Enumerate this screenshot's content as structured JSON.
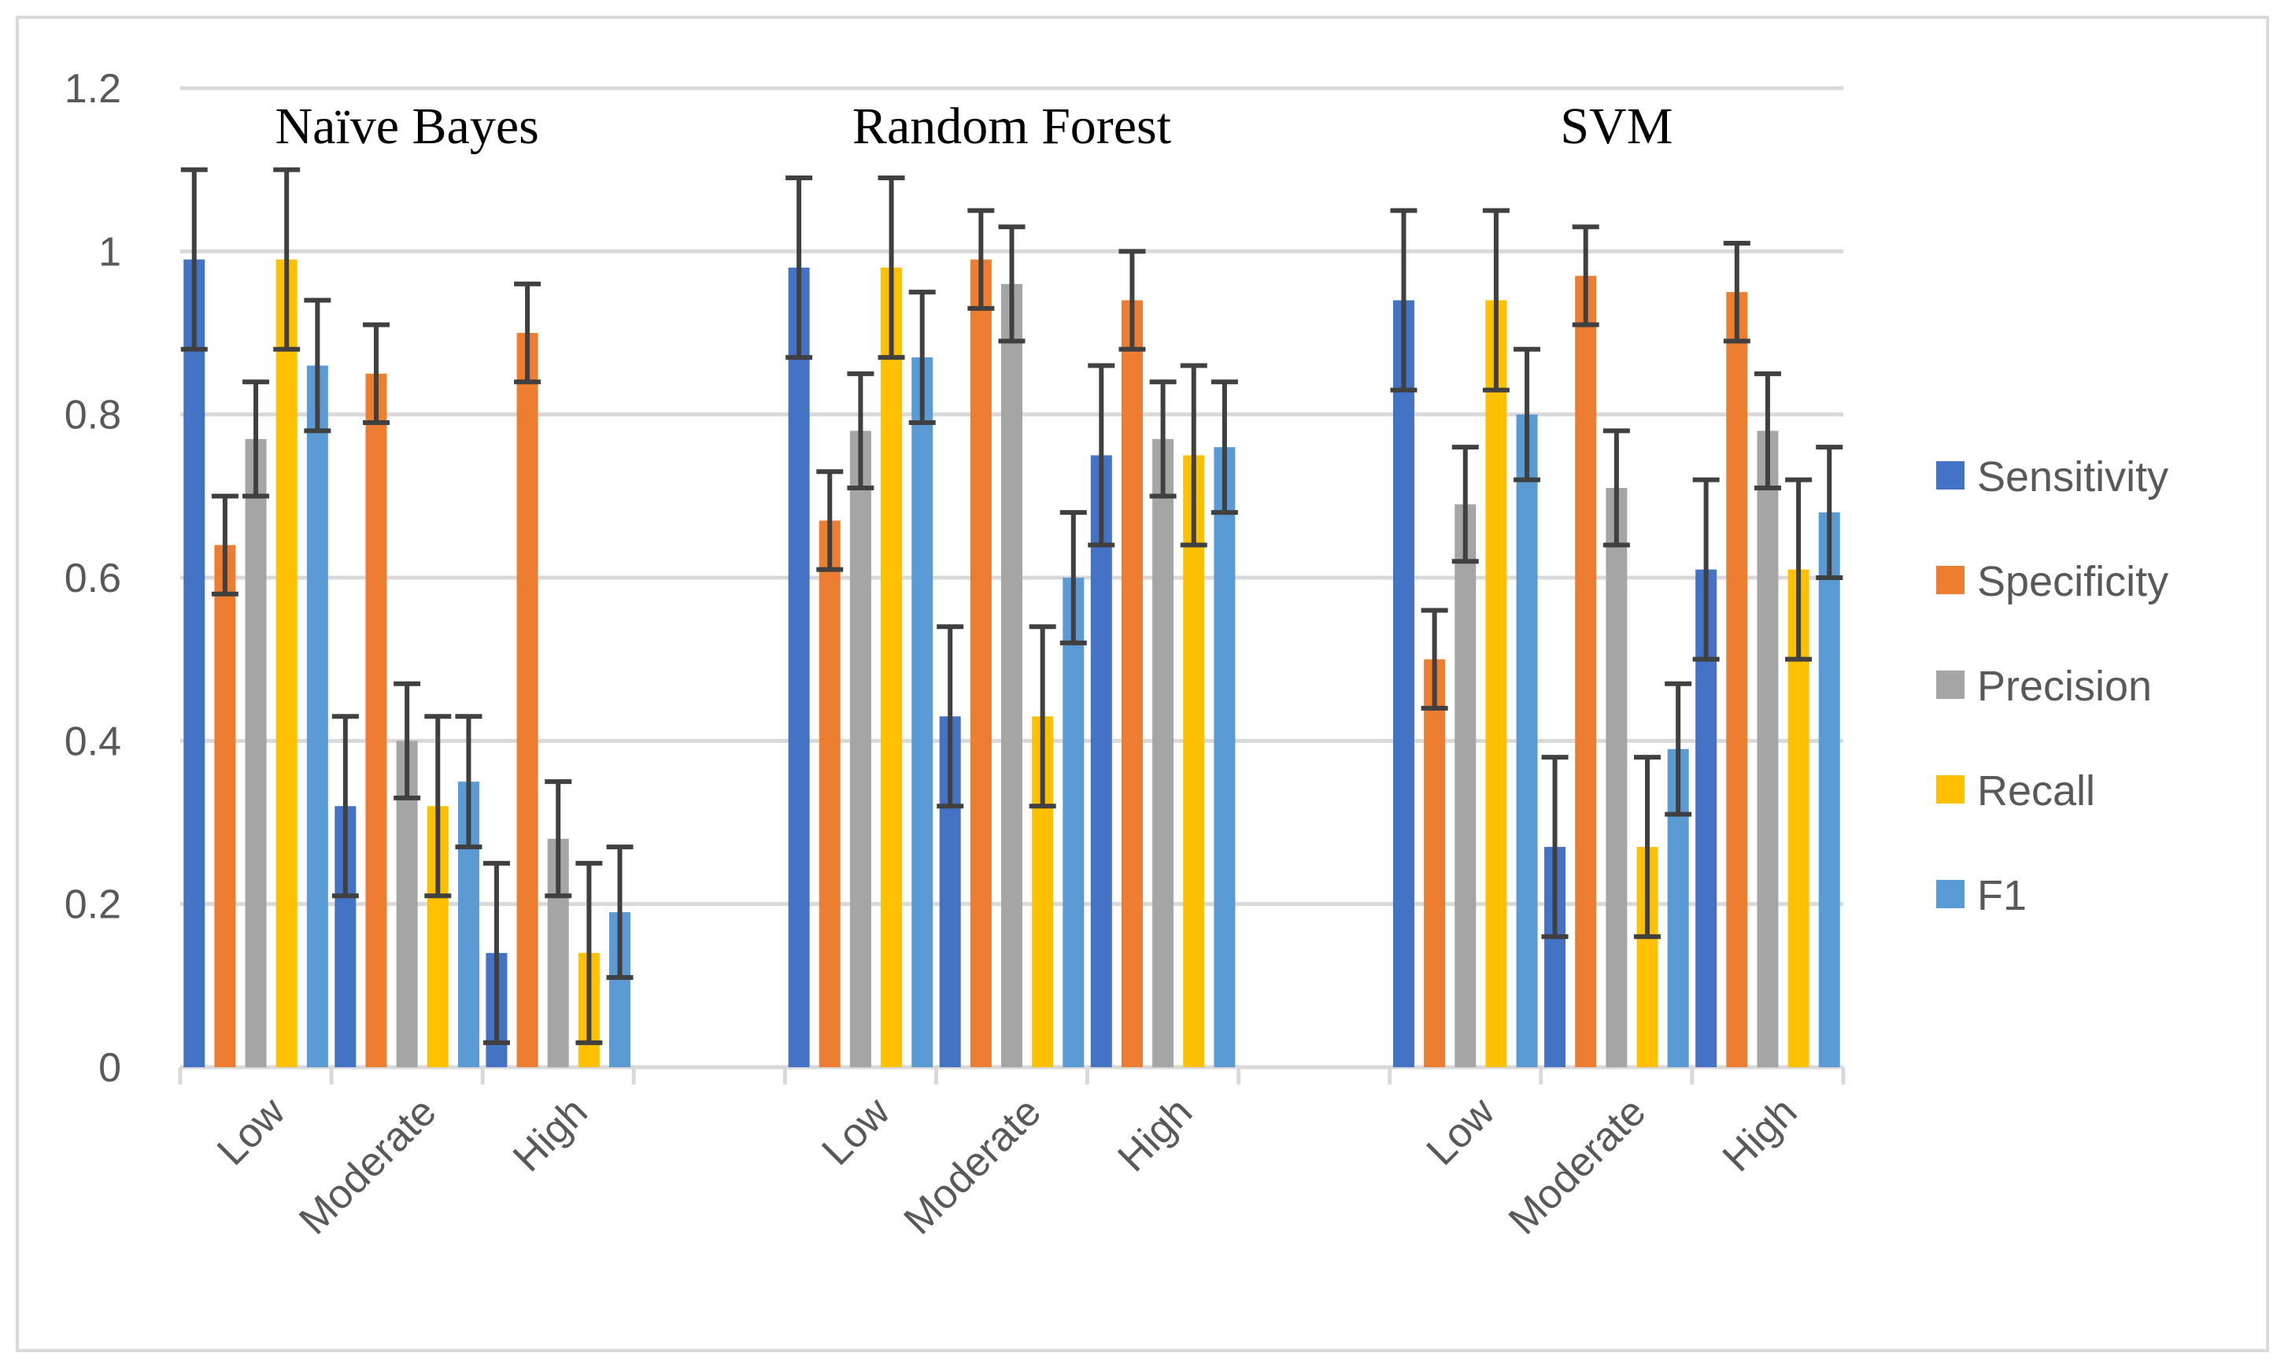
{
  "chart_data": {
    "type": "bar",
    "groups": [
      {
        "title": "Naïve Bayes",
        "categories": [
          "Low",
          "Moderate",
          "High"
        ]
      },
      {
        "title": "Random Forest",
        "categories": [
          "Low",
          "Moderate",
          "High"
        ]
      },
      {
        "title": "SVM",
        "categories": [
          "Low",
          "Moderate",
          "High"
        ]
      }
    ],
    "series": [
      {
        "name": "Sensitivity",
        "color": "#4472c4",
        "values": [
          0.99,
          0.32,
          0.14,
          0.98,
          0.43,
          0.75,
          0.94,
          0.27,
          0.61
        ],
        "errors": [
          0.11,
          0.11,
          0.11,
          0.11,
          0.11,
          0.11,
          0.11,
          0.11,
          0.11
        ]
      },
      {
        "name": "Specificity",
        "color": "#ed7d31",
        "values": [
          0.64,
          0.85,
          0.9,
          0.67,
          0.99,
          0.94,
          0.5,
          0.97,
          0.95
        ],
        "errors": [
          0.06,
          0.06,
          0.06,
          0.06,
          0.06,
          0.06,
          0.06,
          0.06,
          0.06
        ]
      },
      {
        "name": "Precision",
        "color": "#a5a5a5",
        "values": [
          0.77,
          0.4,
          0.28,
          0.78,
          0.96,
          0.77,
          0.69,
          0.71,
          0.78
        ],
        "errors": [
          0.07,
          0.07,
          0.07,
          0.07,
          0.07,
          0.07,
          0.07,
          0.07,
          0.07
        ]
      },
      {
        "name": "Recall",
        "color": "#ffc000",
        "values": [
          0.99,
          0.32,
          0.14,
          0.98,
          0.43,
          0.75,
          0.94,
          0.27,
          0.61
        ],
        "errors": [
          0.11,
          0.11,
          0.11,
          0.11,
          0.11,
          0.11,
          0.11,
          0.11,
          0.11
        ]
      },
      {
        "name": "F1",
        "color": "#5b9bd5",
        "values": [
          0.86,
          0.35,
          0.19,
          0.87,
          0.6,
          0.76,
          0.8,
          0.39,
          0.68
        ],
        "errors": [
          0.08,
          0.08,
          0.08,
          0.08,
          0.08,
          0.08,
          0.08,
          0.08,
          0.08
        ]
      }
    ],
    "ylim": [
      0,
      1.2
    ],
    "yticks": [
      "0",
      "0.2",
      "0.4",
      "0.6",
      "0.8",
      "1",
      "1.2"
    ],
    "grid": true,
    "legend_position": "right",
    "error_bar_color": "#404040",
    "gridline_color": "#d9d9d9"
  }
}
